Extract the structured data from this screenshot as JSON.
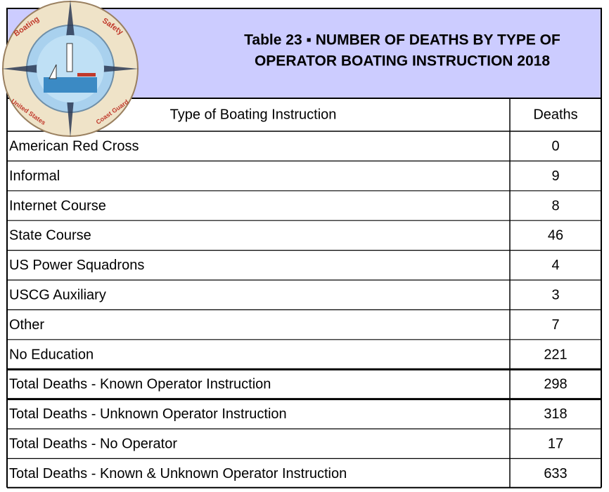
{
  "logo": {
    "texts": [
      "Boating",
      "Safety",
      "United States",
      "Coast Guard"
    ]
  },
  "header": {
    "title": [
      "Table 23 ▪ NUMBER OF DEATHS BY TYPE OF",
      "OPERATOR BOATING INSTRUCTION 2018"
    ]
  },
  "table": {
    "columns": [
      "Type of Boating Instruction",
      "Deaths"
    ],
    "rows": [
      [
        "American Red Cross",
        0
      ],
      [
        "Informal",
        9
      ],
      [
        "Internet Course",
        8
      ],
      [
        "State Course",
        46
      ],
      [
        "US Power Squadrons",
        4
      ],
      [
        "USCG Auxiliary",
        3
      ],
      [
        "Other",
        7
      ],
      [
        "No Education",
        221
      ],
      [
        "Total Deaths - Known Operator Instruction",
        298
      ],
      [
        "Total Deaths - Unknown Operator Instruction",
        318
      ],
      [
        "Total Deaths - No Operator",
        17
      ],
      [
        "Total Deaths - Known & Unknown Operator Instruction",
        633
      ]
    ]
  }
}
